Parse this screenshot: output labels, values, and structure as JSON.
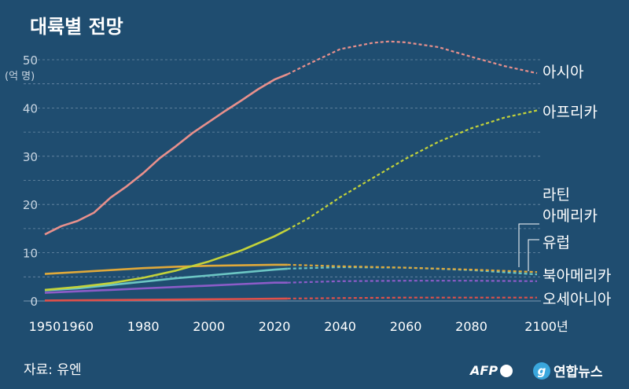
{
  "title": "대륙별 전망",
  "source": "자료: 유엔",
  "logos": {
    "afp": "AFP",
    "yonhap": "연합뉴스",
    "yonhap_mark": "g"
  },
  "chart_data": {
    "type": "line",
    "ylabel": "(억 명)",
    "ylim": [
      0,
      55
    ],
    "yticks": [
      0,
      10,
      20,
      30,
      40,
      50
    ],
    "xlim": [
      1950,
      2100
    ],
    "xtick_labels": [
      "1950",
      "1960",
      "1980",
      "2000",
      "2020",
      "2040",
      "2060",
      "2080",
      "2100년"
    ],
    "xtick_values": [
      1950,
      1960,
      1980,
      2000,
      2020,
      2040,
      2060,
      2080,
      2100
    ],
    "projection_start": 2024,
    "grid": true,
    "series": [
      {
        "name": "아시아",
        "color": "#e8908c",
        "points": [
          [
            1950,
            13.8
          ],
          [
            1955,
            15.5
          ],
          [
            1960,
            16.6
          ],
          [
            1965,
            18.3
          ],
          [
            1970,
            21.4
          ],
          [
            1975,
            23.8
          ],
          [
            1980,
            26.5
          ],
          [
            1985,
            29.6
          ],
          [
            1990,
            32.1
          ],
          [
            1995,
            34.8
          ],
          [
            2000,
            37.1
          ],
          [
            2005,
            39.4
          ],
          [
            2010,
            41.6
          ],
          [
            2015,
            43.9
          ],
          [
            2020,
            45.9
          ],
          [
            2024,
            47.0
          ],
          [
            2030,
            49.0
          ],
          [
            2040,
            52.2
          ],
          [
            2050,
            53.5
          ],
          [
            2055,
            53.8
          ],
          [
            2060,
            53.6
          ],
          [
            2070,
            52.6
          ],
          [
            2080,
            50.6
          ],
          [
            2090,
            48.7
          ],
          [
            2100,
            47.2
          ]
        ]
      },
      {
        "name": "아프리카",
        "color": "#c3d23a",
        "points": [
          [
            1950,
            2.3
          ],
          [
            1960,
            2.9
          ],
          [
            1970,
            3.7
          ],
          [
            1980,
            4.8
          ],
          [
            1990,
            6.3
          ],
          [
            2000,
            8.2
          ],
          [
            2010,
            10.5
          ],
          [
            2020,
            13.4
          ],
          [
            2024,
            14.8
          ],
          [
            2030,
            17.0
          ],
          [
            2040,
            21.5
          ],
          [
            2050,
            25.5
          ],
          [
            2060,
            29.5
          ],
          [
            2070,
            33.0
          ],
          [
            2080,
            35.8
          ],
          [
            2090,
            38.0
          ],
          [
            2100,
            39.5
          ]
        ]
      },
      {
        "name": "라틴 아메리카",
        "color": "#e0a93a",
        "points": [
          [
            1950,
            5.6
          ],
          [
            1960,
            6.0
          ],
          [
            1970,
            6.4
          ],
          [
            1980,
            6.8
          ],
          [
            1990,
            7.1
          ],
          [
            2000,
            7.3
          ],
          [
            2010,
            7.4
          ],
          [
            2020,
            7.5
          ],
          [
            2024,
            7.5
          ],
          [
            2040,
            7.2
          ],
          [
            2060,
            6.9
          ],
          [
            2080,
            6.5
          ],
          [
            2100,
            6.0
          ]
        ]
      },
      {
        "name": "유럽",
        "color": "#6cc6c4",
        "points": [
          [
            1950,
            2.2
          ],
          [
            1960,
            2.6
          ],
          [
            1970,
            3.3
          ],
          [
            1980,
            4.0
          ],
          [
            1990,
            4.7
          ],
          [
            2000,
            5.3
          ],
          [
            2010,
            5.9
          ],
          [
            2020,
            6.5
          ],
          [
            2024,
            6.7
          ],
          [
            2040,
            7.0
          ],
          [
            2060,
            6.9
          ],
          [
            2080,
            6.4
          ],
          [
            2100,
            5.5
          ]
        ]
      },
      {
        "name": "북아메리카",
        "color": "#8c5cc8",
        "points": [
          [
            1950,
            1.7
          ],
          [
            1960,
            2.0
          ],
          [
            1970,
            2.3
          ],
          [
            1980,
            2.6
          ],
          [
            1990,
            2.9
          ],
          [
            2000,
            3.2
          ],
          [
            2010,
            3.5
          ],
          [
            2020,
            3.8
          ],
          [
            2024,
            3.8
          ],
          [
            2040,
            4.1
          ],
          [
            2060,
            4.2
          ],
          [
            2080,
            4.2
          ],
          [
            2100,
            4.1
          ]
        ]
      },
      {
        "name": "오세아니아",
        "color": "#e0504a",
        "points": [
          [
            1950,
            0.1
          ],
          [
            1970,
            0.2
          ],
          [
            1990,
            0.3
          ],
          [
            2010,
            0.4
          ],
          [
            2024,
            0.5
          ],
          [
            2040,
            0.6
          ],
          [
            2060,
            0.7
          ],
          [
            2080,
            0.7
          ],
          [
            2100,
            0.7
          ]
        ]
      }
    ],
    "labels": {
      "asia": "아시아",
      "africa": "아프리카",
      "latam_1": "라틴",
      "latam_2": "아메리카",
      "europe": "유럽",
      "namerica": "북아메리카",
      "oceania": "오세아니아"
    }
  }
}
